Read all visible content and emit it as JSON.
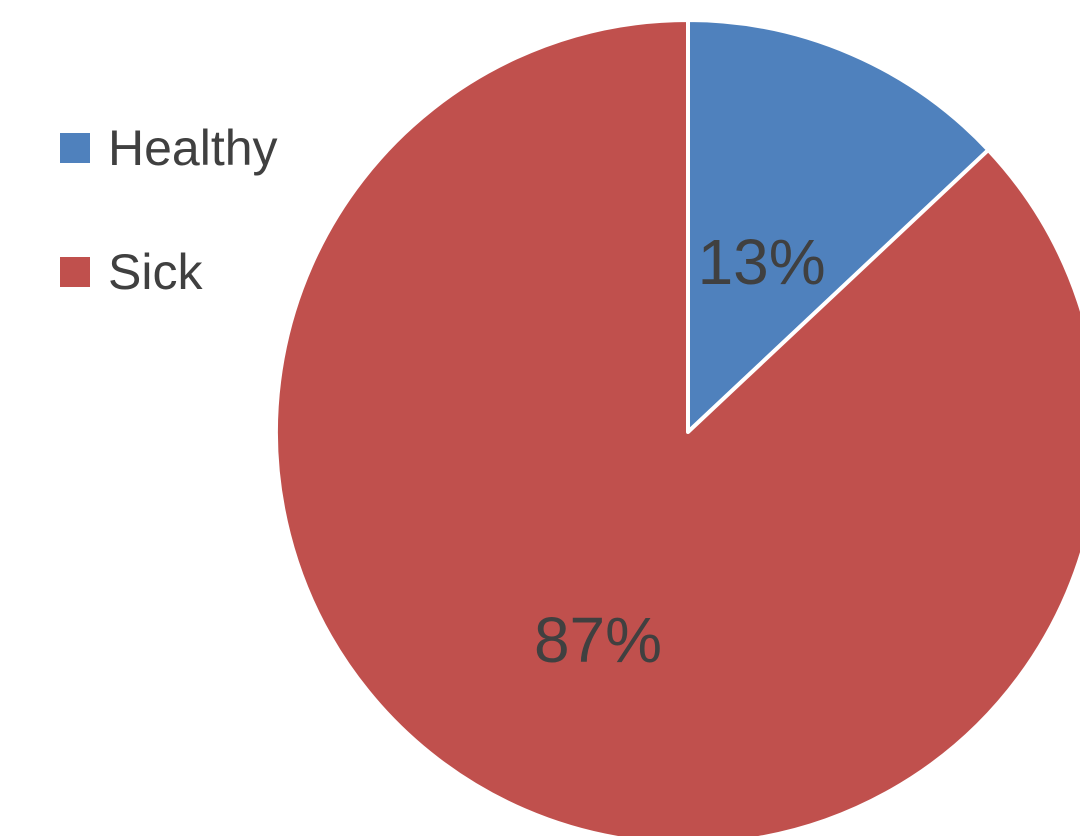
{
  "chart_data": {
    "type": "pie",
    "categories": [
      "Healthy",
      "Sick"
    ],
    "values": [
      13,
      87
    ],
    "data_labels": [
      "13%",
      "87%"
    ],
    "colors": [
      "#4F81BD",
      "#C0504D"
    ],
    "legend": {
      "placement": "left",
      "entries": [
        "Healthy",
        "Sick"
      ]
    },
    "start_angle": "12 o'clock",
    "direction": "clockwise"
  }
}
